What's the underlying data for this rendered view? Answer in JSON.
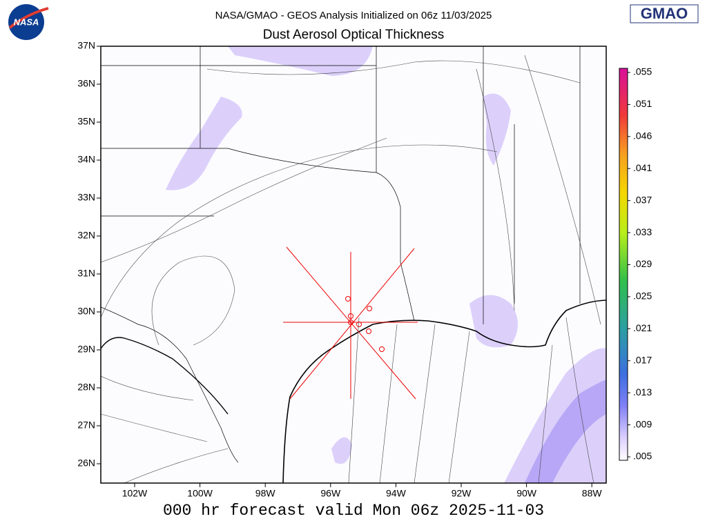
{
  "header": {
    "logo_left": "NASA",
    "logo_right": "GMAO",
    "title": "NASA/GMAO - GEOS Analysis Initialized on 06z 11/03/2025",
    "subtitle": "Dust Aerosol Optical Thickness"
  },
  "map": {
    "lat_labels": [
      "37N",
      "36N",
      "35N",
      "34N",
      "33N",
      "32N",
      "31N",
      "30N",
      "29N",
      "28N",
      "27N",
      "26N"
    ],
    "lon_labels": [
      "102W",
      "100W",
      "98W",
      "96W",
      "94W",
      "92W",
      "90W",
      "88W"
    ]
  },
  "colorbar": {
    "labels": [
      ".055",
      ".051",
      ".046",
      ".041",
      ".037",
      ".033",
      ".029",
      ".025",
      ".021",
      ".017",
      ".013",
      ".009",
      ".005"
    ]
  },
  "footer": "000 hr forecast valid Mon 06z 2025-11-03"
}
